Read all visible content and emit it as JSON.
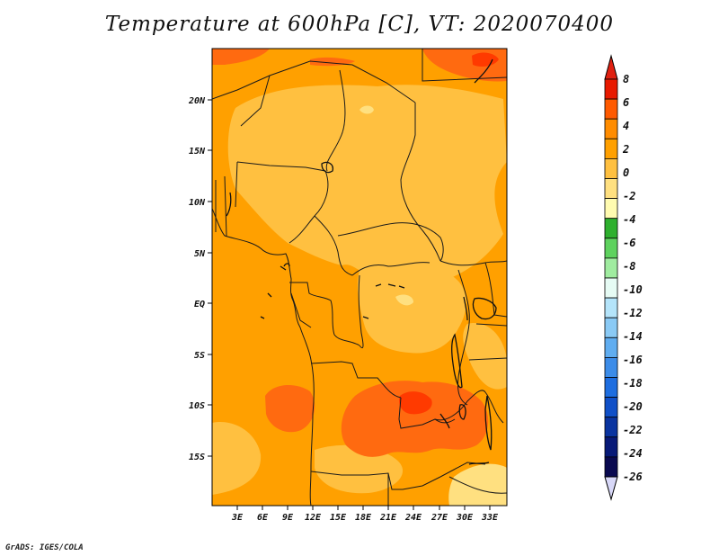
{
  "title": "Temperature at 600hPa [C], VT: 2020070400",
  "credit": "GrADS: IGES/COLA",
  "map": {
    "lat_labels": [
      "20N",
      "15N",
      "10N",
      "5N",
      "EQ",
      "5S",
      "10S",
      "15S"
    ],
    "lon_labels": [
      "3E",
      "6E",
      "9E",
      "12E",
      "15E",
      "18E",
      "21E",
      "24E",
      "27E",
      "30E",
      "33E"
    ],
    "field_colors": {
      "base": "#ffa000",
      "warm_zone": "#ffc040",
      "hot_zone": "#ff6a10",
      "very_hot": "#ff3a00",
      "cool_zone": "#ffe080"
    }
  },
  "colorbar": {
    "labels": [
      "8",
      "6",
      "4",
      "2",
      "0",
      "-2",
      "-4",
      "-6",
      "-8",
      "-10",
      "-12",
      "-14",
      "-16",
      "-18",
      "-20",
      "-22",
      "-24",
      "-26"
    ],
    "colors": [
      "#e81a00",
      "#ff5a00",
      "#ff8c00",
      "#ffa000",
      "#ffc040",
      "#ffe080",
      "#fffbb0",
      "#2eb02e",
      "#5ed25e",
      "#a0ecA0",
      "#e6fbf4",
      "#b4e4fa",
      "#8acaf5",
      "#60adf0",
      "#3c8ce8",
      "#1e6ee0",
      "#1050c8",
      "#0a34a0",
      "#081a78",
      "#0a0a50"
    ],
    "top_tip_color": "#e02010",
    "bottom_tip_color": "#d8d8f8"
  }
}
